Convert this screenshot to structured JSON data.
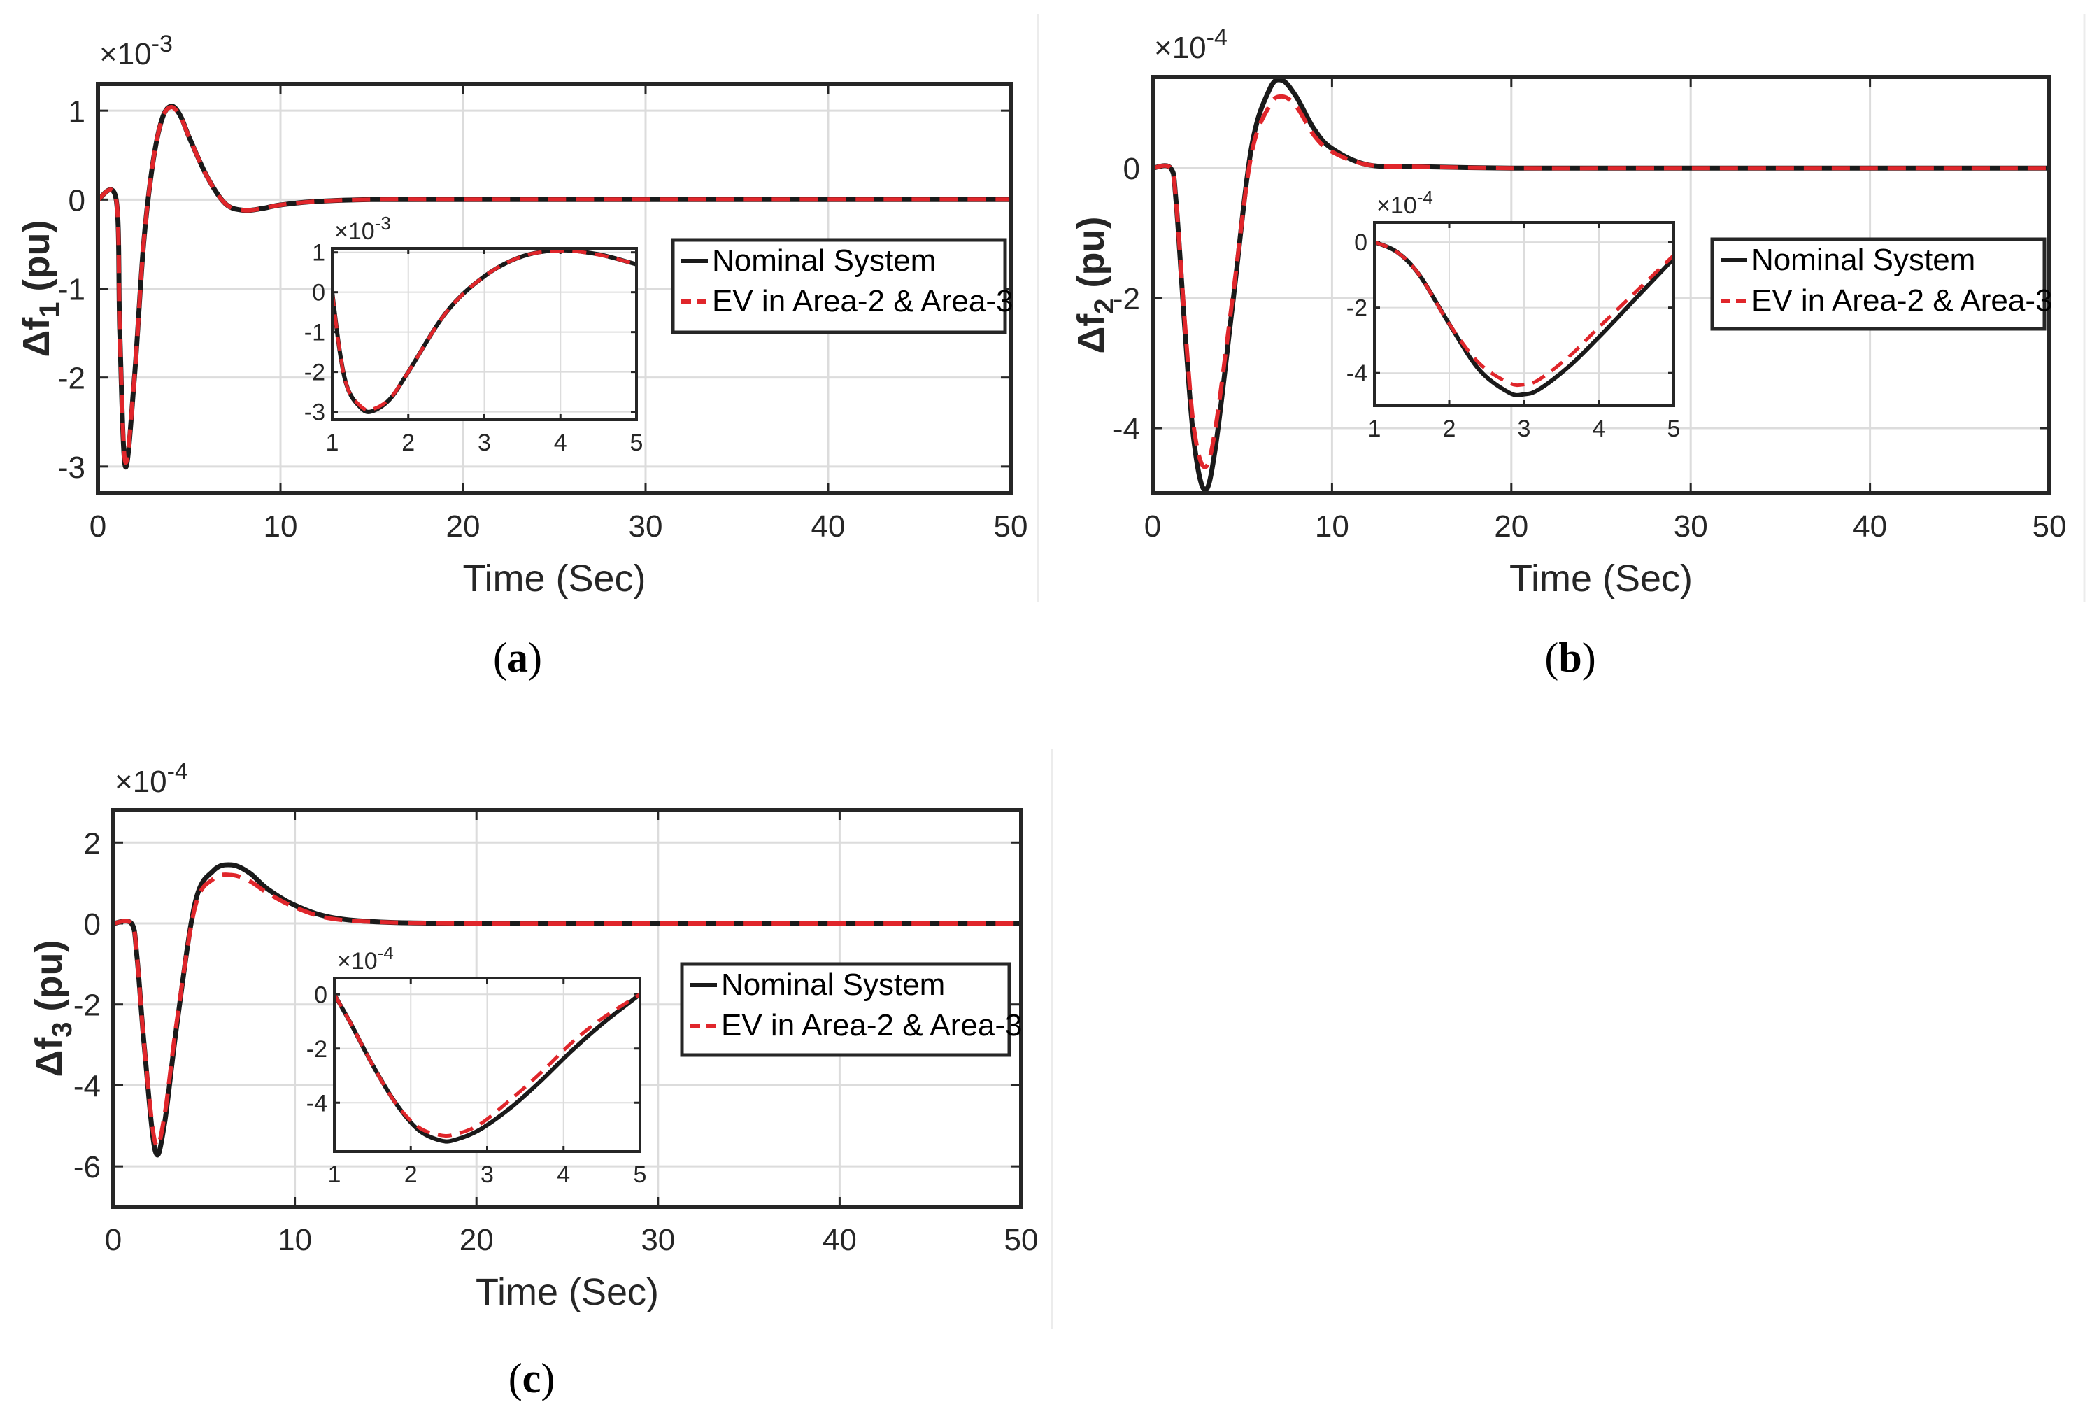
{
  "chart_data": [
    {
      "type": "line",
      "panel": "a",
      "caption_letter": "a",
      "xlabel": "Time (Sec)",
      "ylabel_base": "Δf",
      "ylabel_sub": "1",
      "ylabel_unit": "(pu)",
      "y_multiplier_base": "×10",
      "y_multiplier_exp": "-3",
      "xlim": [
        0,
        50
      ],
      "ylim": [
        -3.3,
        1.3
      ],
      "xticks": [
        0,
        10,
        20,
        30,
        40,
        50
      ],
      "yticks": [
        -3,
        -2,
        -1,
        0,
        1
      ],
      "grid": true,
      "legend_position": "center-right",
      "series": [
        {
          "name": "Nominal System",
          "color": "#1a1a1a",
          "style": "solid",
          "x": [
            0,
            1,
            1.2,
            1.5,
            2,
            2.5,
            3,
            3.5,
            4,
            4.5,
            5,
            6,
            7,
            8,
            9,
            10,
            12,
            15,
            20,
            30,
            40,
            50
          ],
          "y": [
            0,
            0,
            -1.5,
            -3.0,
            -2.0,
            -0.5,
            0.4,
            0.9,
            1.05,
            0.95,
            0.7,
            0.25,
            -0.05,
            -0.12,
            -0.1,
            -0.06,
            -0.02,
            0,
            0,
            0,
            0,
            0
          ]
        },
        {
          "name": "EV in Area-2 & Area-3",
          "color": "#e0262b",
          "style": "dashed",
          "x": [
            0,
            1,
            1.2,
            1.5,
            2,
            2.5,
            3,
            3.5,
            4,
            4.5,
            5,
            6,
            7,
            8,
            9,
            10,
            12,
            15,
            20,
            30,
            40,
            50
          ],
          "y": [
            0,
            0,
            -1.5,
            -2.95,
            -2.0,
            -0.5,
            0.4,
            0.9,
            1.04,
            0.94,
            0.7,
            0.25,
            -0.05,
            -0.12,
            -0.1,
            -0.06,
            -0.02,
            0,
            0,
            0,
            0,
            0
          ]
        }
      ],
      "inset": {
        "xlim": [
          1,
          5
        ],
        "ylim": [
          -3.2,
          1.1
        ],
        "xticks": [
          1,
          2,
          3,
          4,
          5
        ],
        "yticks": [
          -3,
          -2,
          -1,
          0,
          1
        ],
        "y_multiplier_base": "×10",
        "y_multiplier_exp": "-3",
        "x": [
          1,
          1.1,
          1.2,
          1.35,
          1.5,
          1.75,
          2,
          2.5,
          3,
          3.5,
          4,
          4.5,
          5
        ],
        "y_nominal": [
          0,
          -1.5,
          -2.4,
          -2.85,
          -3.0,
          -2.7,
          -2.0,
          -0.5,
          0.4,
          0.9,
          1.05,
          0.95,
          0.7
        ],
        "y_ev": [
          0,
          -1.5,
          -2.4,
          -2.82,
          -2.95,
          -2.68,
          -2.0,
          -0.5,
          0.4,
          0.9,
          1.04,
          0.94,
          0.7
        ]
      }
    },
    {
      "type": "line",
      "panel": "b",
      "caption_letter": "b",
      "xlabel": "Time (Sec)",
      "ylabel_base": "Δf",
      "ylabel_sub": "2",
      "ylabel_unit": "(pu)",
      "y_multiplier_base": "×10",
      "y_multiplier_exp": "-4",
      "xlim": [
        0,
        50
      ],
      "ylim": [
        -5.0,
        1.4
      ],
      "xticks": [
        0,
        10,
        20,
        30,
        40,
        50
      ],
      "yticks": [
        -4,
        -2,
        0
      ],
      "grid": true,
      "legend_position": "center-right",
      "series": [
        {
          "name": "Nominal System",
          "color": "#1a1a1a",
          "style": "solid",
          "x": [
            0,
            1,
            1.3,
            1.8,
            2.3,
            2.9,
            3.5,
            4.5,
            5.5,
            6.5,
            7.2,
            8,
            9,
            10,
            12,
            15,
            20,
            30,
            40,
            50
          ],
          "y": [
            0,
            0,
            -0.5,
            -2.5,
            -4.2,
            -4.95,
            -4.3,
            -2.0,
            0.3,
            1.2,
            1.35,
            1.1,
            0.6,
            0.3,
            0.05,
            0.02,
            0,
            0,
            0,
            0
          ]
        },
        {
          "name": "EV in Area-2 & Area-3",
          "color": "#e0262b",
          "style": "dashed",
          "x": [
            0,
            1,
            1.3,
            1.8,
            2.3,
            2.9,
            3.5,
            4.5,
            5.5,
            6.5,
            7.2,
            8,
            9,
            10,
            12,
            15,
            20,
            30,
            40,
            50
          ],
          "y": [
            0,
            0,
            -0.5,
            -2.4,
            -4.0,
            -4.6,
            -4.0,
            -1.9,
            0.2,
            0.95,
            1.1,
            0.95,
            0.5,
            0.25,
            0.05,
            0.02,
            0,
            0,
            0,
            0
          ]
        }
      ],
      "inset": {
        "xlim": [
          1,
          5
        ],
        "ylim": [
          -5.0,
          0.6
        ],
        "xticks": [
          1,
          2,
          3,
          4,
          5
        ],
        "yticks": [
          -4,
          -2,
          0
        ],
        "y_multiplier_base": "×10",
        "y_multiplier_exp": "-4",
        "x": [
          1,
          1.3,
          1.6,
          2,
          2.4,
          2.8,
          3,
          3.2,
          3.6,
          4,
          4.5,
          5
        ],
        "y_nominal": [
          0,
          -0.3,
          -1.0,
          -2.5,
          -3.9,
          -4.6,
          -4.65,
          -4.5,
          -3.8,
          -2.9,
          -1.7,
          -0.5
        ],
        "y_ev": [
          0,
          -0.3,
          -1.0,
          -2.5,
          -3.7,
          -4.3,
          -4.35,
          -4.2,
          -3.5,
          -2.6,
          -1.5,
          -0.4
        ]
      }
    },
    {
      "type": "line",
      "panel": "c",
      "caption_letter": "c",
      "xlabel": "Time (Sec)",
      "ylabel_base": "Δf",
      "ylabel_sub": "3",
      "ylabel_unit": "(pu)",
      "y_multiplier_base": "×10",
      "y_multiplier_exp": "-4",
      "xlim": [
        0,
        50
      ],
      "ylim": [
        -7.0,
        2.8
      ],
      "xticks": [
        0,
        10,
        20,
        30,
        40,
        50
      ],
      "yticks": [
        -6,
        -4,
        -2,
        0,
        2
      ],
      "grid": true,
      "legend_position": "center-right",
      "series": [
        {
          "name": "Nominal System",
          "color": "#1a1a1a",
          "style": "solid",
          "x": [
            0,
            1,
            1.3,
            1.7,
            2.3,
            2.8,
            3.5,
            4.5,
            5.5,
            6.5,
            7.5,
            8.5,
            10,
            12,
            15,
            20,
            30,
            40,
            50
          ],
          "y": [
            0,
            0,
            -0.8,
            -3.0,
            -5.6,
            -5.0,
            -2.5,
            0.5,
            1.3,
            1.45,
            1.25,
            0.85,
            0.45,
            0.15,
            0.03,
            0,
            0,
            0,
            0
          ]
        },
        {
          "name": "EV in Area-2 & Area-3",
          "color": "#e0262b",
          "style": "dashed",
          "x": [
            0,
            1,
            1.3,
            1.7,
            2.3,
            2.8,
            3.5,
            4.5,
            5.5,
            6.5,
            7.5,
            8.5,
            10,
            12,
            15,
            20,
            30,
            40,
            50
          ],
          "y": [
            0,
            0,
            -0.8,
            -3.0,
            -5.4,
            -4.8,
            -2.4,
            0.4,
            1.1,
            1.2,
            1.05,
            0.75,
            0.4,
            0.12,
            0.03,
            0,
            0,
            0,
            0
          ]
        }
      ],
      "inset": {
        "xlim": [
          1,
          5
        ],
        "ylim": [
          -5.8,
          0.6
        ],
        "xticks": [
          1,
          2,
          3,
          4,
          5
        ],
        "yticks": [
          -4,
          -2,
          0
        ],
        "y_multiplier_base": "×10",
        "y_multiplier_exp": "-4",
        "x": [
          1,
          1.2,
          1.5,
          1.8,
          2.1,
          2.4,
          2.6,
          2.9,
          3.3,
          3.7,
          4.1,
          4.5,
          5
        ],
        "y_nominal": [
          0,
          -1.0,
          -2.6,
          -4.0,
          -5.0,
          -5.4,
          -5.35,
          -5.0,
          -4.2,
          -3.2,
          -2.1,
          -1.1,
          0
        ],
        "y_ev": [
          0,
          -1.0,
          -2.6,
          -4.0,
          -4.9,
          -5.2,
          -5.15,
          -4.8,
          -3.9,
          -2.9,
          -1.8,
          -0.9,
          0
        ]
      }
    }
  ]
}
